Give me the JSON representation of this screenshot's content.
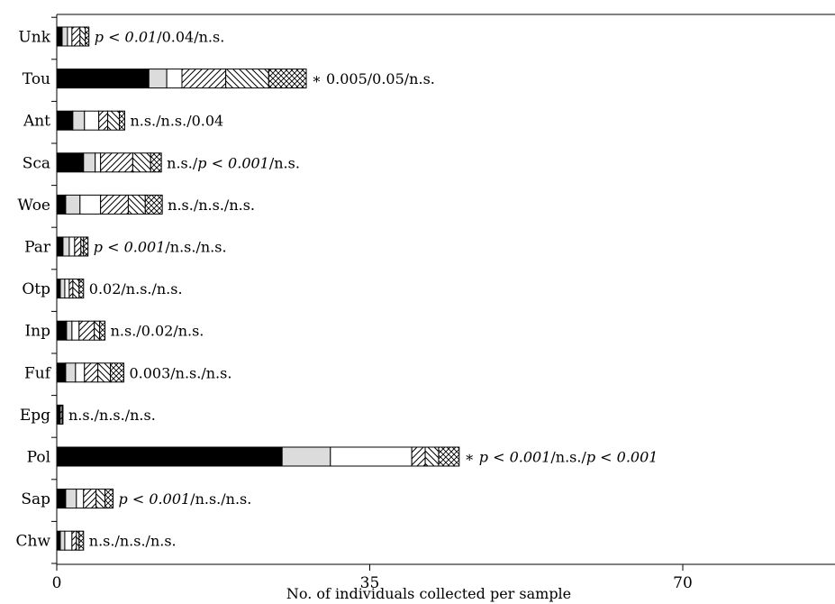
{
  "chart_data": {
    "type": "bar",
    "orientation": "horizontal",
    "stacked": true,
    "xlabel": "No. of individuals collected per sample",
    "ylabel": "",
    "xlim": [
      0,
      87
    ],
    "xticks": [
      0,
      35,
      70
    ],
    "categories": [
      "Unk",
      "Tou",
      "Ant",
      "Sca",
      "Woe",
      "Par",
      "Otp",
      "Inp",
      "Fuf",
      "Epg",
      "Pol",
      "Sap",
      "Chw"
    ],
    "series": [
      {
        "fill": "black",
        "values": [
          0.6,
          10.3,
          1.8,
          3.0,
          1.0,
          0.7,
          0.4,
          1.1,
          1.0,
          0.2,
          25.2,
          1.0,
          0.4
        ]
      },
      {
        "fill": "lightgray",
        "values": [
          0.6,
          2.0,
          1.3,
          1.3,
          1.6,
          0.7,
          0.5,
          0.6,
          1.1,
          0.1,
          5.4,
          1.2,
          0.5
        ]
      },
      {
        "fill": "white",
        "values": [
          0.5,
          1.7,
          1.6,
          0.6,
          2.3,
          0.6,
          0.5,
          0.8,
          1.0,
          0.1,
          9.1,
          0.8,
          0.8
        ]
      },
      {
        "fill": "hatch-forward",
        "values": [
          0.9,
          4.9,
          1.0,
          3.6,
          3.1,
          0.7,
          0.4,
          1.7,
          1.5,
          0.2,
          1.5,
          1.4,
          0.5
        ]
      },
      {
        "fill": "hatch-back",
        "values": [
          0.6,
          4.8,
          1.3,
          2.0,
          1.9,
          0.3,
          0.7,
          0.6,
          1.4,
          0.1,
          1.5,
          1.0,
          0.3
        ]
      },
      {
        "fill": "crosshatch",
        "values": [
          0.4,
          4.2,
          0.6,
          1.2,
          1.9,
          0.5,
          0.5,
          0.6,
          1.5,
          0.0,
          2.3,
          0.9,
          0.5
        ]
      }
    ],
    "annotations": [
      [
        {
          "t": "p < 0.01",
          "i": true
        },
        {
          "t": "/0.04/n.s.",
          "i": false
        }
      ],
      [
        {
          "t": "∗ 0.005/0.05/n.s.",
          "i": false
        }
      ],
      [
        {
          "t": "n.s./n.s./0.04",
          "i": false
        }
      ],
      [
        {
          "t": "n.s./",
          "i": false
        },
        {
          "t": "p < 0.001",
          "i": true
        },
        {
          "t": "/n.s.",
          "i": false
        }
      ],
      [
        {
          "t": "n.s./n.s./n.s.",
          "i": false
        }
      ],
      [
        {
          "t": "p < 0.001",
          "i": true
        },
        {
          "t": "/n.s./n.s.",
          "i": false
        }
      ],
      [
        {
          "t": "0.02/n.s./n.s.",
          "i": false
        }
      ],
      [
        {
          "t": "n.s./0.02/n.s.",
          "i": false
        }
      ],
      [
        {
          "t": "0.003/n.s./n.s.",
          "i": false
        }
      ],
      [
        {
          "t": "n.s./n.s./n.s.",
          "i": false
        }
      ],
      [
        {
          "t": "∗ ",
          "i": false
        },
        {
          "t": "p < 0.001",
          "i": true
        },
        {
          "t": "/n.s./",
          "i": false
        },
        {
          "t": "p < 0.001",
          "i": true
        }
      ],
      [
        {
          "t": "p < 0.001",
          "i": true
        },
        {
          "t": "/n.s./n.s.",
          "i": false
        }
      ],
      [
        {
          "t": "n.s./n.s./n.s.",
          "i": false
        }
      ]
    ],
    "grid": false,
    "legend": "none"
  }
}
